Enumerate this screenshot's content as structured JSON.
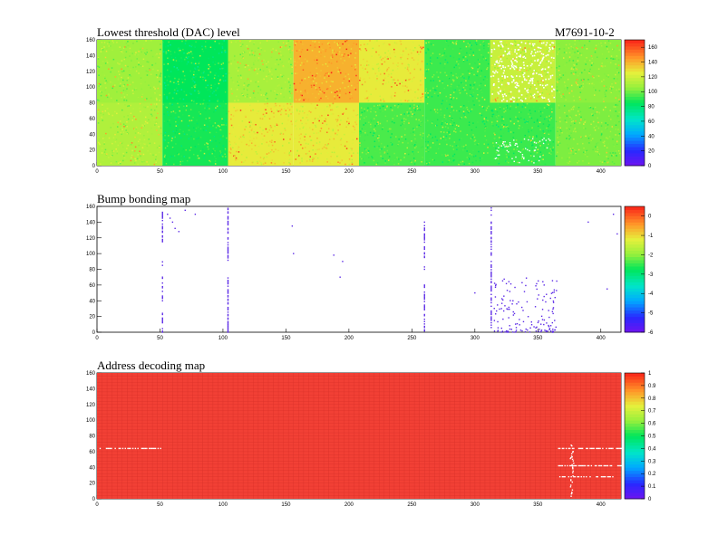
{
  "page": {
    "title": "Lowest threshold (DAC) level",
    "module_id": "M7691-10-2"
  },
  "chart_data": [
    {
      "type": "heatmap",
      "title": "Lowest threshold (DAC) level",
      "x_ticks": [
        0,
        50,
        100,
        150,
        200,
        250,
        300,
        350,
        400
      ],
      "y_ticks": [
        0,
        20,
        40,
        60,
        80,
        100,
        120,
        140,
        160
      ],
      "xlim": [
        0,
        416
      ],
      "ylim": [
        0,
        160
      ],
      "zlim": [
        0,
        170
      ],
      "palette_ticks": [
        0,
        20,
        40,
        60,
        80,
        100,
        120,
        140,
        160
      ],
      "chips": [
        {
          "col": 0,
          "row": 0,
          "value": 112
        },
        {
          "col": 1,
          "row": 0,
          "value": 88
        },
        {
          "col": 2,
          "row": 0,
          "value": 127
        },
        {
          "col": 3,
          "row": 0,
          "value": 127
        },
        {
          "col": 4,
          "row": 0,
          "value": 95
        },
        {
          "col": 5,
          "row": 0,
          "value": 93
        },
        {
          "col": 6,
          "row": 0,
          "value": 93
        },
        {
          "col": 7,
          "row": 0,
          "value": 102
        },
        {
          "col": 0,
          "row": 1,
          "value": 108
        },
        {
          "col": 1,
          "row": 1,
          "value": 85
        },
        {
          "col": 2,
          "row": 1,
          "value": 110
        },
        {
          "col": 3,
          "row": 1,
          "value": 140
        },
        {
          "col": 4,
          "row": 1,
          "value": 127
        },
        {
          "col": 5,
          "row": 1,
          "value": 93
        },
        {
          "col": 6,
          "row": 1,
          "value": 118
        },
        {
          "col": 7,
          "row": 1,
          "value": 104
        }
      ]
    },
    {
      "type": "scatter",
      "title": "Bump bonding map",
      "x_ticks": [
        0,
        50,
        100,
        150,
        200,
        250,
        300,
        350,
        400
      ],
      "y_ticks": [
        0,
        20,
        40,
        60,
        80,
        100,
        120,
        140,
        160
      ],
      "xlim": [
        0,
        416
      ],
      "ylim": [
        0,
        160
      ],
      "zlim": [
        -6,
        0.5
      ],
      "palette_ticks": [
        0,
        -1,
        -2,
        -3,
        -4,
        -5,
        -6
      ],
      "column_clusters": [
        {
          "x": 52,
          "y_ranges": [
            [
              0,
              25
            ],
            [
              40,
              70
            ],
            [
              85,
              90
            ],
            [
              115,
              155
            ]
          ]
        },
        {
          "x": 104,
          "y_ranges": [
            [
              0,
              70
            ],
            [
              90,
              160
            ]
          ]
        },
        {
          "x": 260,
          "y_ranges": [
            [
              0,
              60
            ],
            [
              80,
              140
            ]
          ]
        },
        {
          "x": 313,
          "y_ranges": [
            [
              0,
              90
            ],
            [
              95,
              160
            ]
          ]
        }
      ],
      "points": [
        [
          56,
          150
        ],
        [
          58,
          145
        ],
        [
          60,
          140
        ],
        [
          62,
          132
        ],
        [
          65,
          128
        ],
        [
          70,
          155
        ],
        [
          78,
          150
        ],
        [
          155,
          135
        ],
        [
          156,
          100
        ],
        [
          188,
          98
        ],
        [
          195,
          90
        ],
        [
          193,
          70
        ],
        [
          300,
          50
        ],
        [
          355,
          60
        ],
        [
          365,
          65
        ],
        [
          390,
          140
        ],
        [
          405,
          55
        ],
        [
          410,
          150
        ],
        [
          413,
          125
        ]
      ],
      "scatter_region": {
        "x_range": [
          315,
          365
        ],
        "y_range": [
          0,
          70
        ]
      }
    },
    {
      "type": "heatmap",
      "title": "Address decoding map",
      "x_ticks": [
        0,
        50,
        100,
        150,
        200,
        250,
        300,
        350,
        400
      ],
      "y_ticks": [
        0,
        20,
        40,
        60,
        80,
        100,
        120,
        140,
        160
      ],
      "xlim": [
        0,
        416
      ],
      "ylim": [
        0,
        160
      ],
      "zlim": [
        0,
        1
      ],
      "palette_ticks": [
        0,
        0.1,
        0.2,
        0.3,
        0.4,
        0.5,
        0.6,
        0.7,
        0.8,
        0.9,
        1
      ],
      "value": 1,
      "defects": [
        {
          "x_range": [
            2,
            50
          ],
          "y": 64
        },
        {
          "x_range": [
            366,
            416
          ],
          "y": 64
        },
        {
          "x_range": [
            366,
            416
          ],
          "y": 42
        },
        {
          "x_range": [
            366,
            416
          ],
          "y": 28
        },
        {
          "x_range": [
            375,
            378
          ],
          "y_range": [
            0,
            70
          ]
        }
      ]
    }
  ]
}
